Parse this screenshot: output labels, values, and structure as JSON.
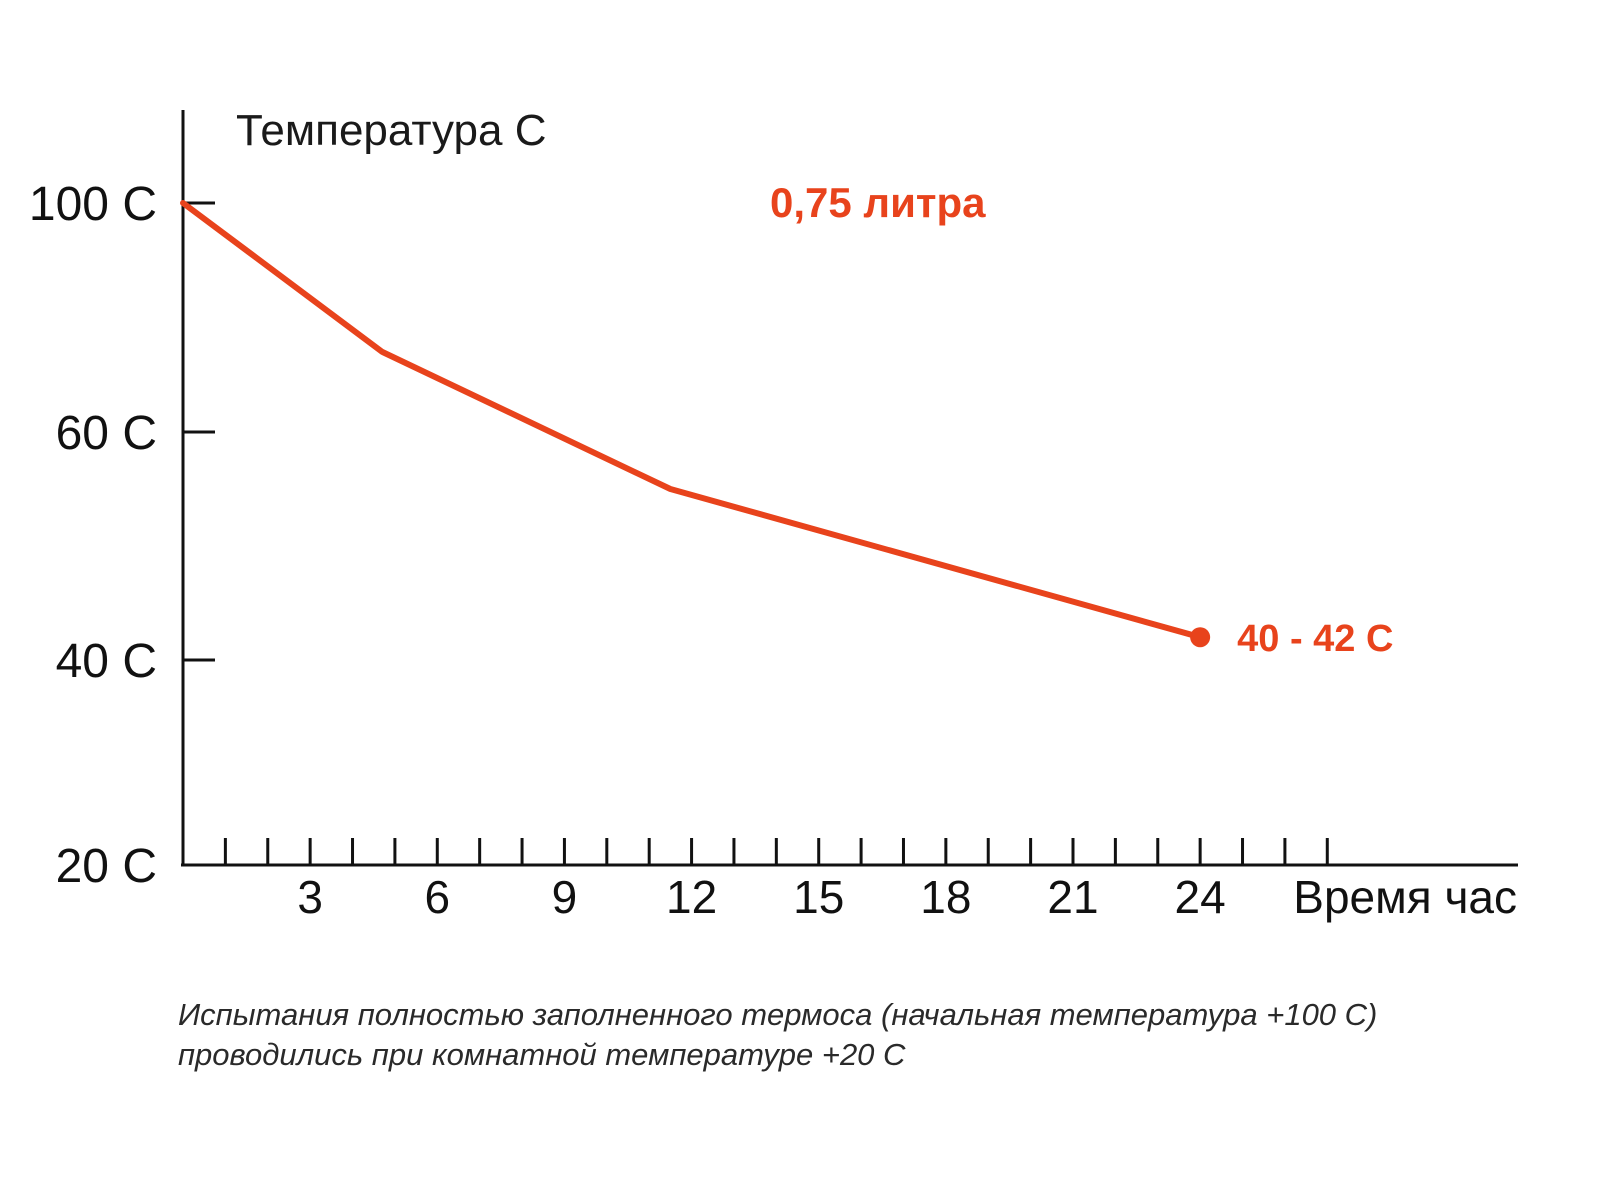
{
  "colors": {
    "series": "#e8431c",
    "axis": "#111111"
  },
  "chart_data": {
    "type": "line",
    "ylabel": "Температура С",
    "xlabel": "Время час",
    "xlim": [
      0,
      31.5
    ],
    "ylim": [
      20,
      110
    ],
    "y_scale": "piecewise (ticks 20, 40, 60, 100 unevenly spaced)",
    "yticks": [
      {
        "value": 100,
        "label": "100 С"
      },
      {
        "value": 60,
        "label": "60 С"
      },
      {
        "value": 40,
        "label": "40 С"
      },
      {
        "value": 20,
        "label": "20 С"
      }
    ],
    "xticks": [
      {
        "value": 3,
        "label": "3"
      },
      {
        "value": 6,
        "label": "6"
      },
      {
        "value": 9,
        "label": "9"
      },
      {
        "value": 12,
        "label": "12"
      },
      {
        "value": 15,
        "label": "15"
      },
      {
        "value": 18,
        "label": "18"
      },
      {
        "value": 21,
        "label": "21"
      },
      {
        "value": 24,
        "label": "24"
      }
    ],
    "minor_tick_step": 1,
    "minor_tick_max": 27,
    "grid": false,
    "legend": "none",
    "series": [
      {
        "name": "0,75 литра",
        "color": "#e8431c",
        "x": [
          0,
          4.7,
          11.5,
          24
        ],
        "y": [
          100,
          74,
          55,
          42
        ],
        "end_label": "40 - 42 С"
      }
    ]
  },
  "caption": {
    "line1": "Испытания полностью заполненного термоса (начальная температура +100 С)",
    "line2": "проводились при комнатной температуре +20 С"
  }
}
